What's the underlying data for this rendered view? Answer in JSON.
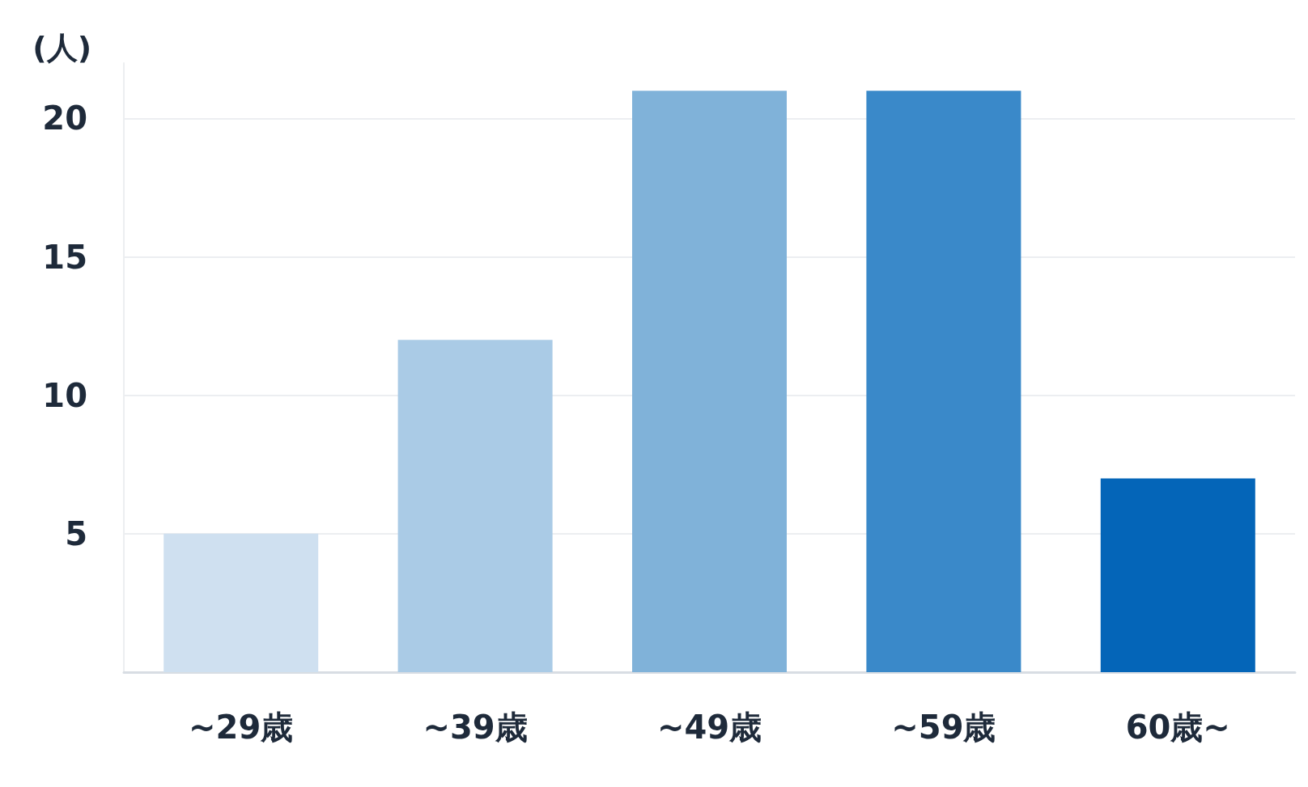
{
  "chart_data": {
    "type": "bar",
    "ylabel": "(人)",
    "categories": [
      "~29歳",
      "~39歳",
      "~49歳",
      "~59歳",
      "60歳~"
    ],
    "values": [
      5,
      12,
      21,
      21,
      7
    ],
    "colors": [
      "#cfe0f0",
      "#aacbe6",
      "#80b2d9",
      "#3a89c9",
      "#0465b8"
    ],
    "ylim": [
      0,
      22
    ],
    "yticks": [
      5,
      10,
      15,
      20
    ],
    "grid": "y"
  }
}
